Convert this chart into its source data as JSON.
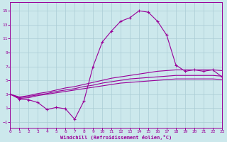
{
  "xlabel": "Windchill (Refroidissement éolien,°C)",
  "background_color": "#cce8ec",
  "grid_color": "#aaccd4",
  "line_color": "#990099",
  "x_values": [
    0,
    1,
    2,
    3,
    4,
    5,
    6,
    7,
    8,
    9,
    10,
    11,
    12,
    13,
    14,
    15,
    16,
    17,
    18,
    19,
    20,
    21,
    22,
    23
  ],
  "windchill_line": [
    3.0,
    2.3,
    2.2,
    1.8,
    0.8,
    1.1,
    0.9,
    -0.6,
    2.0,
    7.0,
    10.5,
    12.1,
    13.5,
    14.0,
    15.0,
    14.8,
    13.5,
    11.5,
    7.2,
    6.3,
    6.5,
    6.3,
    6.5,
    5.5
  ],
  "upper_line": [
    3.0,
    2.6,
    2.8,
    3.1,
    3.3,
    3.6,
    3.9,
    4.1,
    4.4,
    4.7,
    5.0,
    5.3,
    5.5,
    5.7,
    5.9,
    6.1,
    6.3,
    6.4,
    6.5,
    6.5,
    6.5,
    6.5,
    6.5,
    6.4
  ],
  "mid_line": [
    3.0,
    2.5,
    2.7,
    2.9,
    3.1,
    3.4,
    3.6,
    3.8,
    4.1,
    4.3,
    4.6,
    4.8,
    5.0,
    5.2,
    5.3,
    5.4,
    5.5,
    5.6,
    5.7,
    5.7,
    5.7,
    5.7,
    5.7,
    5.6
  ],
  "lower_line": [
    3.0,
    2.4,
    2.5,
    2.8,
    3.0,
    3.2,
    3.4,
    3.6,
    3.8,
    4.0,
    4.2,
    4.4,
    4.6,
    4.7,
    4.8,
    4.9,
    5.0,
    5.1,
    5.2,
    5.2,
    5.2,
    5.2,
    5.2,
    5.1
  ],
  "xlim": [
    0,
    23
  ],
  "ylim": [
    -1.8,
    16.2
  ],
  "yticks": [
    -1,
    1,
    3,
    5,
    7,
    9,
    11,
    13,
    15
  ],
  "xticks": [
    0,
    1,
    2,
    3,
    4,
    5,
    6,
    7,
    8,
    9,
    10,
    11,
    12,
    13,
    14,
    15,
    16,
    17,
    18,
    19,
    20,
    21,
    22,
    23
  ]
}
